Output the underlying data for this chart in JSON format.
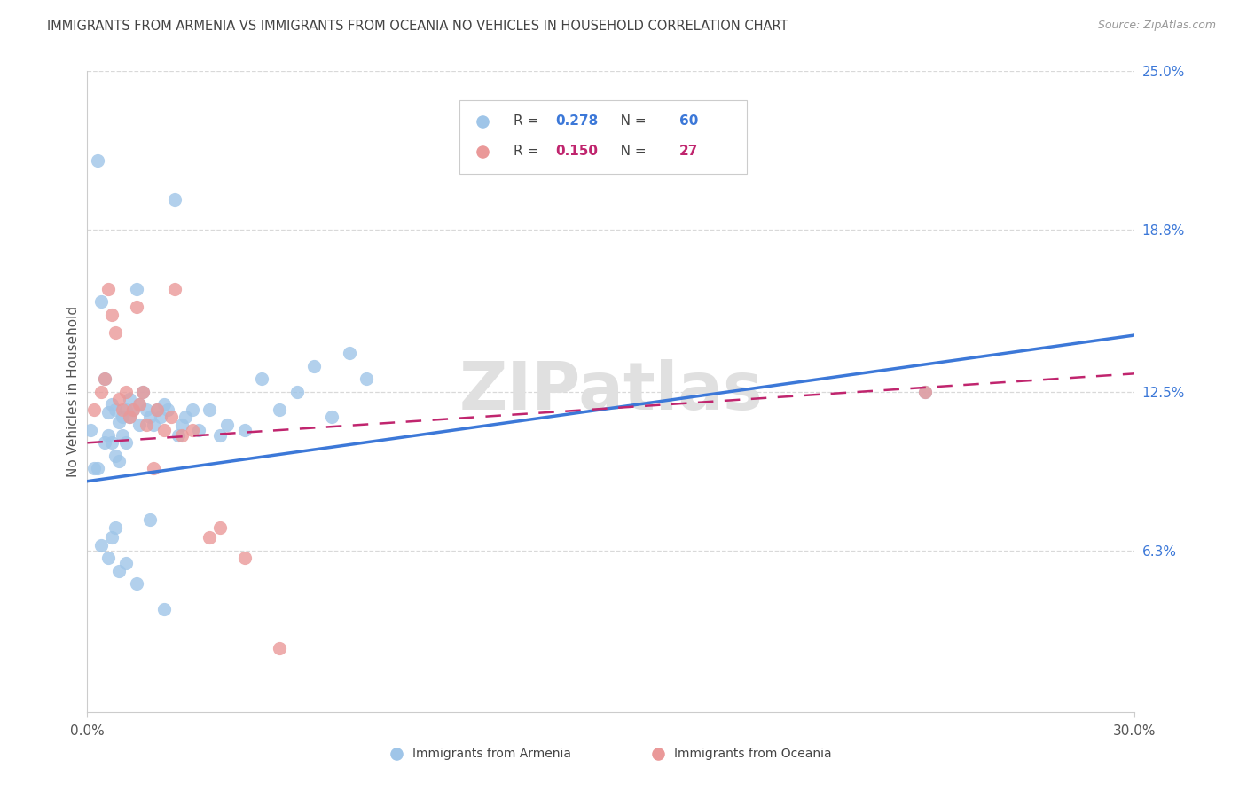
{
  "title": "IMMIGRANTS FROM ARMENIA VS IMMIGRANTS FROM OCEANIA NO VEHICLES IN HOUSEHOLD CORRELATION CHART",
  "source": "Source: ZipAtlas.com",
  "ylabel": "No Vehicles in Household",
  "xlim": [
    0.0,
    0.3
  ],
  "ylim": [
    0.0,
    0.25
  ],
  "ytick_vals": [
    0.063,
    0.125,
    0.188,
    0.25
  ],
  "ytick_labels": [
    "6.3%",
    "12.5%",
    "18.8%",
    "25.0%"
  ],
  "xtick_vals": [
    0.0,
    0.3
  ],
  "xtick_labels": [
    "0.0%",
    "30.0%"
  ],
  "legend_label1": "Immigrants from Armenia",
  "legend_label2": "Immigrants from Oceania",
  "R1": "0.278",
  "N1": "60",
  "R2": "0.150",
  "N2": "27",
  "color1": "#9fc5e8",
  "color2": "#ea9999",
  "line_color1": "#3c78d8",
  "line_color2": "#c0256e",
  "bg_color": "#ffffff",
  "grid_color": "#d9d9d9",
  "title_color": "#434343",
  "source_color": "#999999",
  "watermark_color": "#e0e0e0",
  "arm_line_y0": 0.09,
  "arm_line_y1": 0.147,
  "oce_line_y0": 0.105,
  "oce_line_y1": 0.132,
  "arm_x": [
    0.001,
    0.002,
    0.003,
    0.003,
    0.004,
    0.005,
    0.005,
    0.006,
    0.006,
    0.007,
    0.007,
    0.008,
    0.008,
    0.009,
    0.009,
    0.01,
    0.01,
    0.011,
    0.011,
    0.012,
    0.012,
    0.013,
    0.014,
    0.015,
    0.015,
    0.016,
    0.017,
    0.018,
    0.019,
    0.02,
    0.021,
    0.022,
    0.023,
    0.025,
    0.026,
    0.027,
    0.028,
    0.03,
    0.032,
    0.035,
    0.038,
    0.04,
    0.045,
    0.05,
    0.055,
    0.06,
    0.065,
    0.07,
    0.075,
    0.08,
    0.004,
    0.006,
    0.007,
    0.008,
    0.009,
    0.011,
    0.014,
    0.018,
    0.022,
    0.24
  ],
  "arm_y": [
    0.11,
    0.095,
    0.215,
    0.095,
    0.16,
    0.13,
    0.105,
    0.117,
    0.108,
    0.12,
    0.105,
    0.118,
    0.1,
    0.113,
    0.098,
    0.115,
    0.108,
    0.118,
    0.105,
    0.122,
    0.115,
    0.118,
    0.165,
    0.12,
    0.112,
    0.125,
    0.118,
    0.115,
    0.112,
    0.118,
    0.115,
    0.12,
    0.118,
    0.2,
    0.108,
    0.112,
    0.115,
    0.118,
    0.11,
    0.118,
    0.108,
    0.112,
    0.11,
    0.13,
    0.118,
    0.125,
    0.135,
    0.115,
    0.14,
    0.13,
    0.065,
    0.06,
    0.068,
    0.072,
    0.055,
    0.058,
    0.05,
    0.075,
    0.04,
    0.125
  ],
  "oce_x": [
    0.002,
    0.004,
    0.005,
    0.006,
    0.007,
    0.008,
    0.009,
    0.01,
    0.011,
    0.012,
    0.013,
    0.014,
    0.015,
    0.016,
    0.017,
    0.019,
    0.02,
    0.022,
    0.024,
    0.025,
    0.027,
    0.03,
    0.035,
    0.038,
    0.045,
    0.055,
    0.24
  ],
  "oce_y": [
    0.118,
    0.125,
    0.13,
    0.165,
    0.155,
    0.148,
    0.122,
    0.118,
    0.125,
    0.115,
    0.118,
    0.158,
    0.12,
    0.125,
    0.112,
    0.095,
    0.118,
    0.11,
    0.115,
    0.165,
    0.108,
    0.11,
    0.068,
    0.072,
    0.06,
    0.025,
    0.125
  ]
}
